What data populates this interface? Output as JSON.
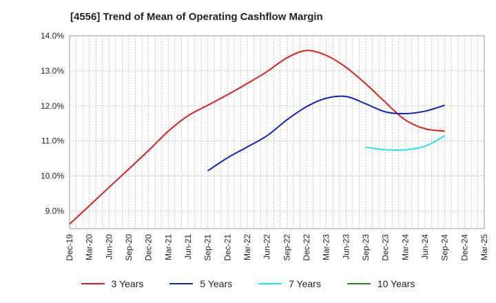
{
  "chart_data": {
    "type": "line",
    "title": "[4556]  Trend of Mean of Operating Cashflow Margin",
    "xlabel": "",
    "ylabel": "",
    "x_tick_labels": [
      "Dec-19",
      "Mar-20",
      "Jun-20",
      "Sep-20",
      "Dec-20",
      "Mar-21",
      "Jun-21",
      "Sep-21",
      "Dec-21",
      "Mar-22",
      "Jun-22",
      "Sep-22",
      "Dec-22",
      "Mar-23",
      "Jun-23",
      "Sep-23",
      "Dec-23",
      "Mar-24",
      "Jun-24",
      "Sep-24",
      "Dec-24",
      "Mar-25"
    ],
    "y_tick_labels": [
      "9.0%",
      "10.0%",
      "11.0%",
      "12.0%",
      "13.0%",
      "14.0%"
    ],
    "y_ticks": [
      9.0,
      10.0,
      11.0,
      12.0,
      13.0,
      14.0
    ],
    "ylim": [
      8.5,
      14.0
    ],
    "grid": true,
    "legend_position": "bottom",
    "series": [
      {
        "name": "3 Years",
        "color": "#e31a1c",
        "x": [
          "Dec-19",
          "Mar-20",
          "Jun-20",
          "Sep-20",
          "Dec-20",
          "Mar-21",
          "Jun-21",
          "Sep-21",
          "Dec-21",
          "Mar-22",
          "Jun-22",
          "Sep-22",
          "Dec-22",
          "Mar-23",
          "Jun-23",
          "Sep-23",
          "Dec-23",
          "Mar-24",
          "Jun-24",
          "Sep-24"
        ],
        "values": [
          8.63,
          9.15,
          9.68,
          10.2,
          10.73,
          11.28,
          11.72,
          12.02,
          12.32,
          12.64,
          12.98,
          13.37,
          13.58,
          13.44,
          13.1,
          12.63,
          12.1,
          11.6,
          11.35,
          11.28
        ]
      },
      {
        "name": "5 Years",
        "color": "#0a22c8",
        "x": [
          "Sep-21",
          "Dec-21",
          "Mar-22",
          "Jun-22",
          "Sep-22",
          "Dec-22",
          "Mar-23",
          "Jun-23",
          "Sep-23",
          "Dec-23",
          "Mar-24",
          "Jun-24",
          "Sep-24"
        ],
        "values": [
          10.15,
          10.52,
          10.83,
          11.15,
          11.6,
          11.98,
          12.22,
          12.27,
          12.06,
          11.83,
          11.78,
          11.85,
          12.02
        ]
      },
      {
        "name": "7 Years",
        "color": "#22e5f2",
        "x": [
          "Sep-23",
          "Dec-23",
          "Mar-24",
          "Jun-24",
          "Sep-24"
        ],
        "values": [
          10.82,
          10.75,
          10.75,
          10.85,
          11.15
        ]
      },
      {
        "name": "10 Years",
        "color": "#1e8c1e",
        "x": [],
        "values": []
      }
    ]
  }
}
